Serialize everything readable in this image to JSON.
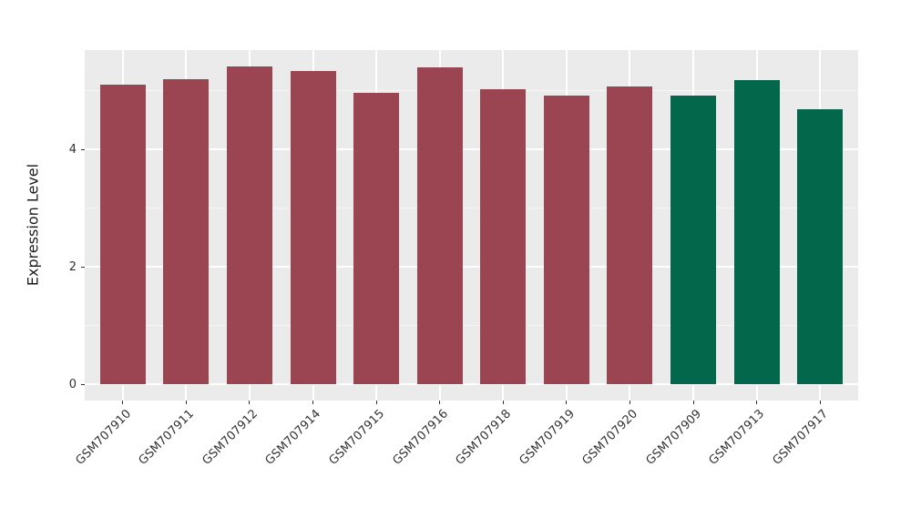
{
  "chart_data": {
    "type": "bar",
    "title": "",
    "xlabel": "",
    "ylabel": "Expression Level",
    "categories": [
      "GSM707910",
      "GSM707911",
      "GSM707912",
      "GSM707914",
      "GSM707915",
      "GSM707916",
      "GSM707918",
      "GSM707919",
      "GSM707920",
      "GSM707909",
      "GSM707913",
      "GSM707917"
    ],
    "values": [
      5.11,
      5.2,
      5.41,
      5.34,
      4.97,
      5.4,
      5.03,
      4.92,
      5.08,
      4.92,
      5.18,
      4.69
    ],
    "bar_colors": [
      "#9B4452",
      "#9B4452",
      "#9B4452",
      "#9B4452",
      "#9B4452",
      "#9B4452",
      "#9B4452",
      "#9B4452",
      "#9B4452",
      "#03684B",
      "#03684B",
      "#03684B"
    ],
    "group_colors": {
      "maroon": "#9B4452",
      "green": "#03684B"
    },
    "yticks": [
      0,
      2,
      4
    ],
    "ytick_labels": [
      "0",
      "2",
      "4"
    ],
    "minor_yticks": [
      1,
      3,
      5
    ],
    "ylim": [
      -0.274,
      5.695
    ],
    "grid": "on",
    "legend_position": "none",
    "panel_background": "#EBEBEB",
    "grid_major_color": "#FFFFFF",
    "grid_minor_color": "#F5F5F5",
    "axis_text_color": "#333333",
    "x_label_angle_deg": 45
  }
}
